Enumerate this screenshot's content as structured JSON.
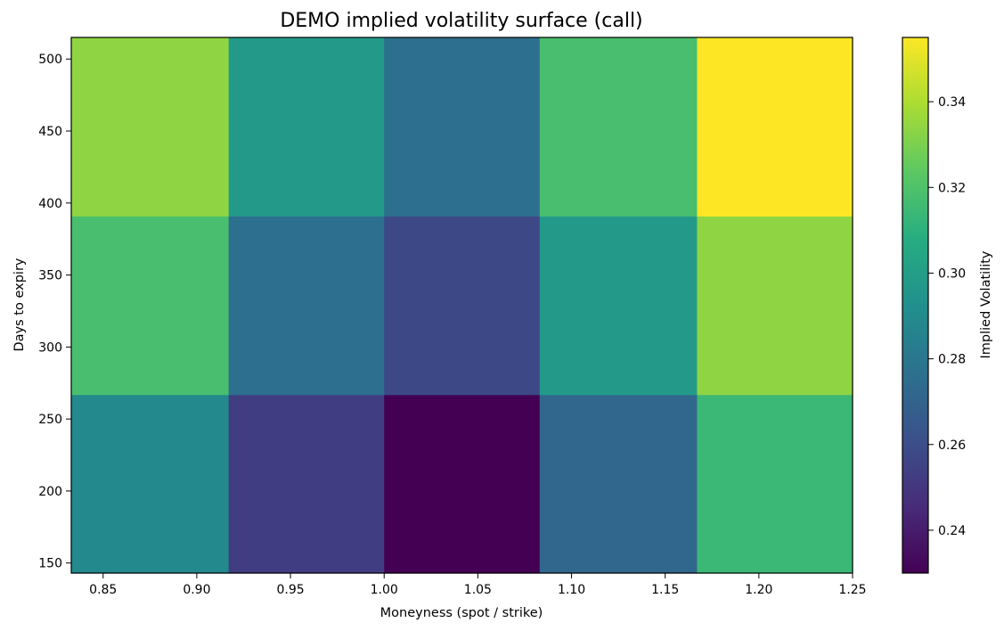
{
  "chart_data": {
    "type": "heatmap",
    "title": "DEMO implied volatility surface (call)",
    "xlabel": "Moneyness (spot / strike)",
    "ylabel": "Days to expiry",
    "colorbar_label": "Implied Volatility",
    "colormap": "viridis",
    "xlim": [
      0.833,
      1.25
    ],
    "ylim": [
      143,
      515
    ],
    "clim": [
      0.23,
      0.355
    ],
    "x_edges": [
      0.833,
      0.917,
      1.0,
      1.083,
      1.167,
      1.25
    ],
    "y_edges": [
      143,
      267,
      391,
      515
    ],
    "x_ticks": [
      "0.85",
      "0.90",
      "0.95",
      "1.00",
      "1.05",
      "1.10",
      "1.15",
      "1.20",
      "1.25"
    ],
    "y_ticks": [
      "150",
      "200",
      "250",
      "300",
      "350",
      "400",
      "450",
      "500"
    ],
    "colorbar_ticks": [
      "0.24",
      "0.26",
      "0.28",
      "0.30",
      "0.32",
      "0.34"
    ],
    "grid": false,
    "rows": [
      {
        "days_range": [
          143,
          267
        ],
        "values": [
          0.289,
          0.253,
          0.23,
          0.272,
          0.314
        ]
      },
      {
        "days_range": [
          267,
          391
        ],
        "values": [
          0.318,
          0.276,
          0.258,
          0.298,
          0.334
        ]
      },
      {
        "days_range": [
          391,
          515
        ],
        "values": [
          0.334,
          0.298,
          0.276,
          0.318,
          0.355
        ]
      }
    ]
  }
}
